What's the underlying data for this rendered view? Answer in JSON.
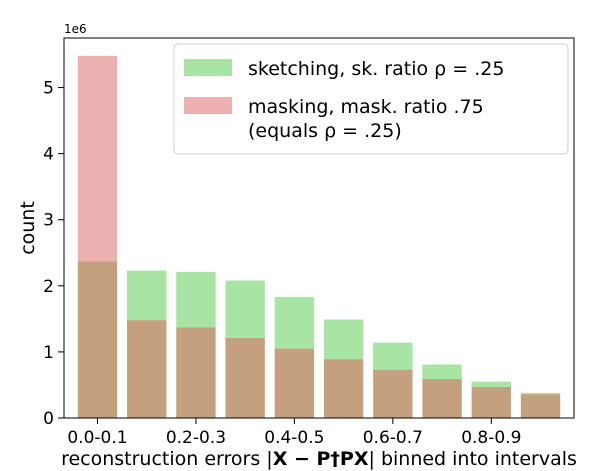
{
  "chart_data": {
    "type": "bar",
    "offset_text": "1e6",
    "categories": [
      "0.0-0.1",
      "0.1-0.2",
      "0.2-0.3",
      "0.3-0.4",
      "0.4-0.5",
      "0.5-0.6",
      "0.6-0.7",
      "0.7-0.8",
      "0.8-0.9",
      "0.9-1.0"
    ],
    "shown_tick_labels": [
      "0.0-0.1",
      "0.2-0.3",
      "0.4-0.5",
      "0.6-0.7",
      "0.8-0.9"
    ],
    "series": [
      {
        "name": "sketching, sk. ratio ρ = .25",
        "color": "#a8e4a4",
        "values": [
          2.37,
          2.23,
          2.21,
          2.08,
          1.83,
          1.49,
          1.14,
          0.81,
          0.55,
          0.38
        ]
      },
      {
        "name": "masking, mask. ratio .75 (equals ρ = .25)",
        "color": "#ecb0b0",
        "values": [
          5.48,
          1.48,
          1.37,
          1.21,
          1.05,
          0.89,
          0.73,
          0.59,
          0.47,
          0.36
        ]
      }
    ],
    "overlap_color": "#c4a07e",
    "xlabel": "reconstruction errors |X − P†PX| binned into intervals",
    "ylabel": "count",
    "ylim": [
      0,
      5.75
    ],
    "yticks": [
      0,
      1,
      2,
      3,
      4,
      5
    ],
    "grid": false,
    "legend_position": "top-right",
    "legend": [
      {
        "lines": [
          "sketching, sk. ratio ρ = .25"
        ]
      },
      {
        "lines": [
          "masking, mask. ratio .75",
          "(equals ρ = .25)"
        ]
      }
    ]
  }
}
